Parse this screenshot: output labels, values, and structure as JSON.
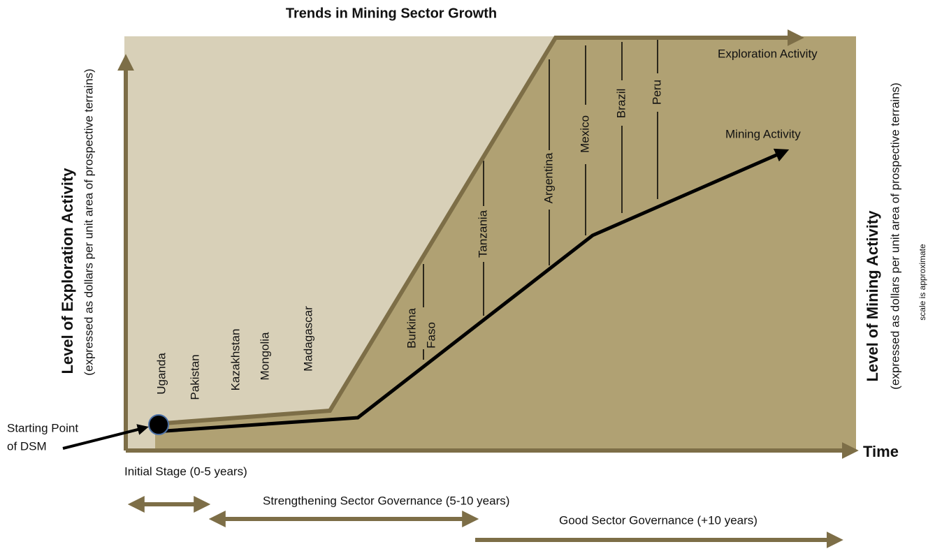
{
  "title": "Trends in Mining Sector Growth",
  "left_axis": {
    "label": "Level of Exploration Activity",
    "sublabel": "(expressed as dollars per unit area of prospective terrains)"
  },
  "right_axis": {
    "label": "Level of Mining Activity",
    "sublabel": "(expressed as dollars per unit area of prospective terrains)",
    "note": "scale is approximate"
  },
  "x_axis": {
    "label": "Time"
  },
  "curves": {
    "exploration": "Exploration Activity",
    "mining": "Mining Activity"
  },
  "start": {
    "line1": "Starting Point",
    "line2": "of DSM"
  },
  "countries": [
    "Uganda",
    "Pakistan",
    "Kazakhstan",
    "Mongolia",
    "Madagascar",
    "Burkina",
    "Faso",
    "Tanzania",
    "Argentina",
    "Mexico",
    "Brazil",
    "Peru"
  ],
  "stages": [
    "Initial Stage (0-5 years)",
    "Strengthening Sector Governance (5-10 years)",
    "Good Sector Governance  (+10 years)"
  ]
}
